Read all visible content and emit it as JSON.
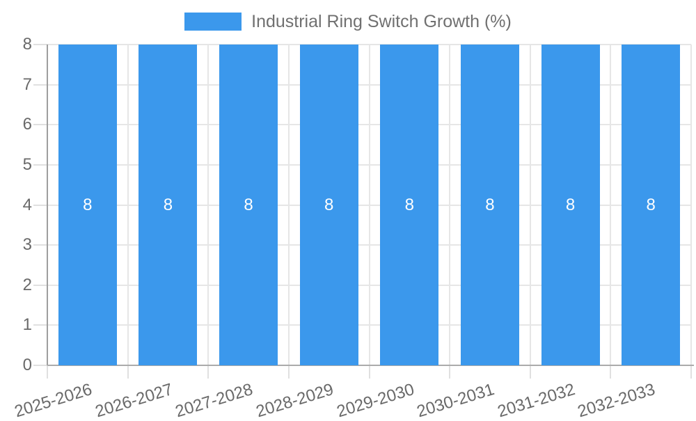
{
  "legend": {
    "label": "Industrial Ring Switch Growth (%)"
  },
  "colors": {
    "bar": "#3b98ec",
    "grid": "#e6e6e6",
    "tick": "#e0e0e0",
    "y_axis_line": "#9e9e9e",
    "x_axis_line": "#ababab",
    "axis_text": "#696969",
    "legend_text": "#707070",
    "bar_label": "#ffffff",
    "background": "#ffffff"
  },
  "chart_data": {
    "type": "bar",
    "title": "Industrial Ring Switch Growth (%)",
    "categories": [
      "2025-2026",
      "2026-2027",
      "2027-2028",
      "2028-2029",
      "2029-2030",
      "2030-2031",
      "2031-2032",
      "2032-2033"
    ],
    "series": [
      {
        "name": "Industrial Ring Switch Growth (%)",
        "values": [
          8,
          8,
          8,
          8,
          8,
          8,
          8,
          8
        ]
      }
    ],
    "bar_value_labels": [
      "8",
      "8",
      "8",
      "8",
      "8",
      "8",
      "8",
      "8"
    ],
    "xlabel": "",
    "ylabel": "",
    "ylim": [
      0,
      8
    ],
    "yticks": [
      0,
      1,
      2,
      3,
      4,
      5,
      6,
      7,
      8
    ],
    "grid": true,
    "legend_position": "top",
    "x_label_rotation_deg": -17
  }
}
